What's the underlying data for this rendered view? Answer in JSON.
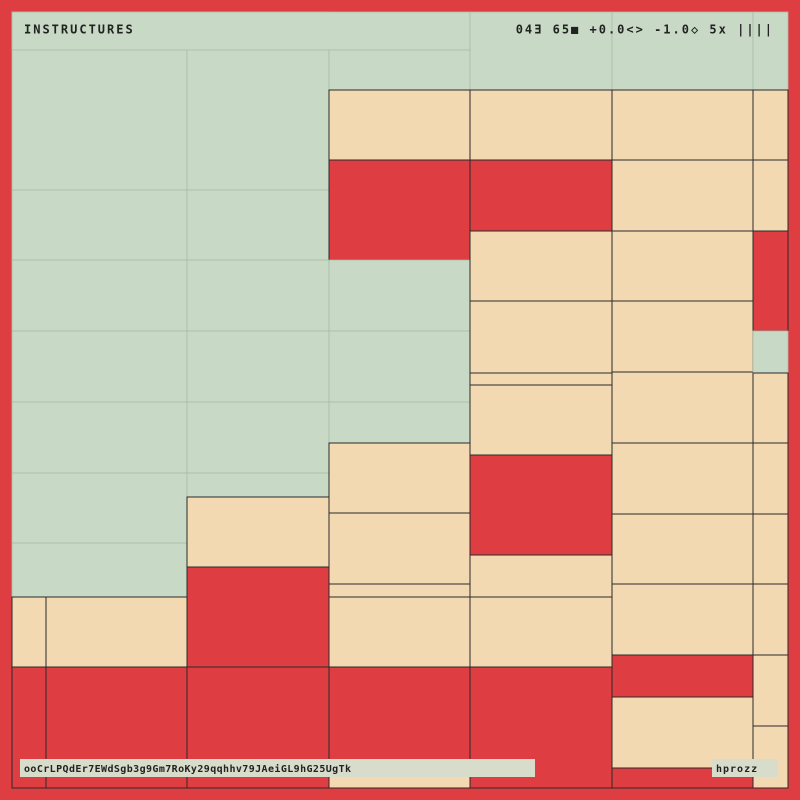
{
  "header": {
    "title": "INSTRUCTURES",
    "status": "04Ǝ 65■ +0.0<> -1.0◇ 5x ||||"
  },
  "footer": {
    "seed": "ooCrLPQdEr7EWdSgb3g9Gm7RoKy29qqhhv79JAeiGL9hG25UgTk",
    "code": "hprozz"
  }
}
